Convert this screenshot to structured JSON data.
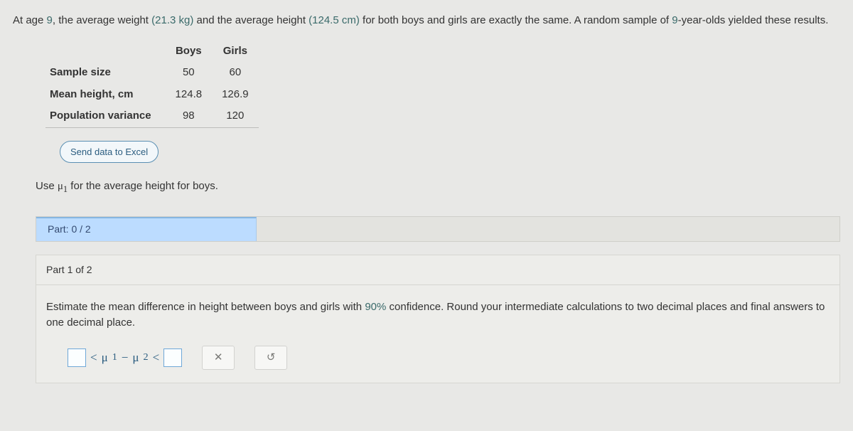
{
  "intro": {
    "pre_age": "At age ",
    "age": "9",
    "post_age": ", the average weight ",
    "weight": "(21.3 kg)",
    "mid1": " and the average height ",
    "height": "(124.5 cm)",
    "mid2": " for both boys and girls are exactly the same. A random sample of ",
    "sample_age": "9",
    "tail": "-year-olds yielded these results."
  },
  "table": {
    "columns": {
      "blank": "",
      "boys": "Boys",
      "girls": "Girls"
    },
    "rows": [
      {
        "label": "Sample size",
        "boys": "50",
        "girls": "60"
      },
      {
        "label": "Mean height, cm",
        "boys": "124.8",
        "girls": "126.9"
      },
      {
        "label": "Population variance",
        "boys": "98",
        "girls": "120"
      }
    ]
  },
  "excel_button": "Send data to Excel",
  "use_line": {
    "pre": "Use ",
    "mu": "μ",
    "sub": "1",
    "post": " for the average height for boys."
  },
  "progress": {
    "label": "Part: 0 / 2"
  },
  "part1": {
    "header": "Part 1 of 2",
    "prompt_pre": "Estimate the mean difference in height between boys and girls with ",
    "conf": "90%",
    "prompt_post": " confidence. Round your intermediate calculations to two decimal places and final answers to one decimal place."
  },
  "expr": {
    "lt1": "<",
    "mu": "μ",
    "sub1": "1",
    "minus": "−",
    "sub2": "2",
    "lt2": "<"
  },
  "icons": {
    "clear": "✕",
    "reset": "↺"
  }
}
